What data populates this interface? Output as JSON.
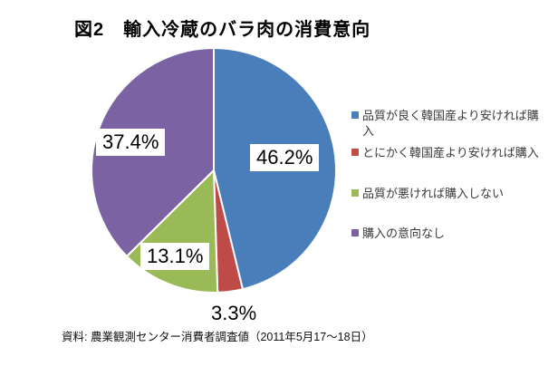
{
  "title": "図2　輸入冷蔵のバラ肉の消費意向",
  "source_note": "資料: 農業観測センター消費者調査値（2011年5月17～18日）",
  "chart_data": {
    "type": "pie",
    "title": "図2　輸入冷蔵のバラ肉の消費意向",
    "labels": [
      "品質が良く韓国産より安ければ購入",
      "とにかく韓国産より安ければ購入",
      "品質が悪ければ購入しない",
      "購入の意向なし"
    ],
    "values": [
      46.2,
      3.3,
      13.1,
      37.4
    ],
    "display_labels": [
      "46.2%",
      "3.3%",
      "13.1%",
      "37.4%"
    ],
    "colors": [
      "#4a7ebb",
      "#be4b48",
      "#9aba58",
      "#7b62a2"
    ],
    "start_angle_deg": 0,
    "direction": "clockwise",
    "legend_position": "right",
    "separator_color": "#ffffff",
    "source_note": "資料: 農業観測センター消費者調査値（2011年5月17～18日）"
  }
}
